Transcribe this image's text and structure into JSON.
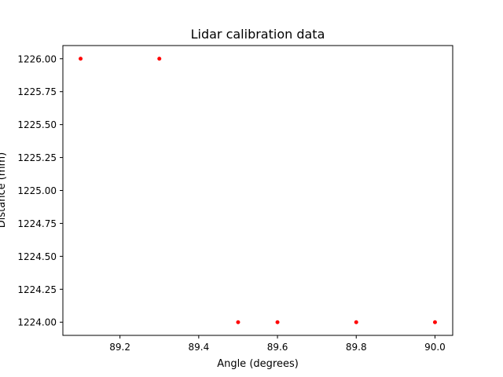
{
  "chart_data": {
    "type": "scatter",
    "title": "Lidar calibration data",
    "xlabel": "Angle (degrees)",
    "ylabel": "Distance (mm)",
    "xlim": [
      89.055,
      90.045
    ],
    "ylim": [
      1223.9,
      1226.1
    ],
    "xticks": [
      89.2,
      89.4,
      89.6,
      89.8,
      90.0
    ],
    "xtick_labels": [
      "89.2",
      "89.4",
      "89.6",
      "89.8",
      "90.0"
    ],
    "yticks": [
      1224.0,
      1224.25,
      1224.5,
      1224.75,
      1225.0,
      1225.25,
      1225.5,
      1225.75,
      1226.0
    ],
    "ytick_labels": [
      "1224.00",
      "1224.25",
      "1224.50",
      "1224.75",
      "1225.00",
      "1225.25",
      "1225.50",
      "1225.75",
      "1226.00"
    ],
    "grid": false,
    "series": [
      {
        "color": "#ff0000",
        "x": [
          89.1,
          89.3,
          89.5,
          89.6,
          89.8,
          90.0
        ],
        "y": [
          1226.0,
          1226.0,
          1224.0,
          1224.0,
          1224.0,
          1224.0
        ]
      }
    ]
  }
}
